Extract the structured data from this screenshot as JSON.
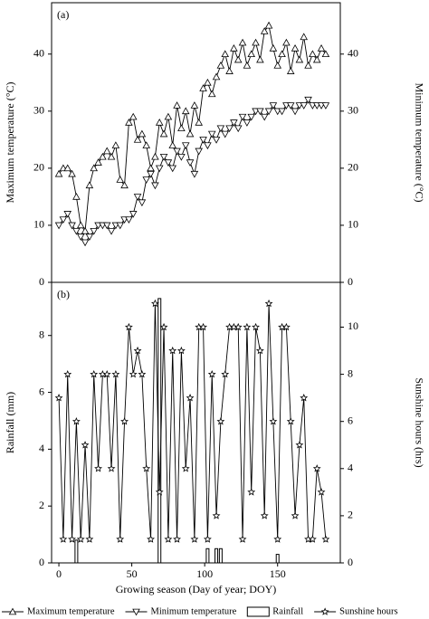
{
  "chart_data": [
    {
      "type": "line",
      "label": "(a)",
      "ylabel": "Maximum  temperature (°C)",
      "y2label": "Minimum  temperature (°C)",
      "xlim": [
        -5,
        193
      ],
      "ylim": [
        0,
        49
      ],
      "yticks": [
        0,
        10,
        20,
        30,
        40
      ],
      "y2lim": [
        0,
        49
      ],
      "y2ticks": [
        0,
        10,
        20,
        30,
        40
      ],
      "x": [
        0,
        3,
        6,
        9,
        12,
        15,
        18,
        21,
        24,
        27,
        30,
        33,
        36,
        39,
        42,
        45,
        48,
        51,
        54,
        57,
        60,
        63,
        66,
        69,
        72,
        75,
        78,
        81,
        84,
        87,
        90,
        93,
        96,
        99,
        102,
        105,
        108,
        111,
        114,
        117,
        120,
        123,
        126,
        129,
        132,
        135,
        138,
        141,
        144,
        147,
        150,
        153,
        156,
        159,
        162,
        165,
        168,
        171,
        174,
        177,
        180,
        183
      ],
      "series": [
        {
          "name": "Maximum temperature",
          "color": "#000000",
          "kind": "line",
          "marker": "triangle-up",
          "axis": "y",
          "values": [
            19,
            20,
            20,
            19,
            15,
            10,
            9,
            17,
            20,
            21,
            22,
            23,
            22,
            24,
            18,
            17,
            28,
            29,
            25,
            26,
            24,
            20,
            22,
            28,
            26,
            29,
            24,
            31,
            27,
            30,
            26,
            31,
            28,
            34,
            35,
            33,
            36,
            38,
            40,
            37,
            41,
            39,
            42,
            38,
            40,
            42,
            39,
            44,
            45,
            41,
            38,
            40,
            42,
            37,
            41,
            39,
            43,
            38,
            40,
            39,
            41,
            40
          ]
        },
        {
          "name": "Minimum temperature",
          "color": "#000000",
          "kind": "line",
          "marker": "triangle-down",
          "axis": "y2",
          "values": [
            10,
            11,
            12,
            10,
            9,
            8,
            7,
            8,
            9,
            10,
            10,
            10,
            9,
            10,
            10,
            11,
            11,
            12,
            15,
            14,
            18,
            19,
            17,
            20,
            22,
            21,
            20,
            23,
            22,
            24,
            21,
            19,
            23,
            25,
            24,
            26,
            25,
            27,
            26,
            27,
            28,
            27,
            29,
            28,
            29,
            30,
            30,
            29,
            30,
            31,
            30,
            30,
            31,
            31,
            30,
            31,
            31,
            32,
            31,
            31,
            31,
            31
          ]
        }
      ]
    },
    {
      "type": "combo",
      "label": "(b)",
      "ylabel": "Rainfall (mm)",
      "y2label": "Sunshine  hours  (hrs)",
      "xlabel": "Growing season (Day of year; DOY)",
      "xlim": [
        -5,
        193
      ],
      "xticks": [
        0,
        50,
        100,
        150
      ],
      "ylim": [
        0,
        9.87
      ],
      "yticks": [
        0,
        2,
        4,
        6,
        8
      ],
      "y2lim": [
        0,
        11.9
      ],
      "y2ticks": [
        0,
        2,
        4,
        6,
        8,
        10
      ],
      "x": [
        0,
        3,
        6,
        9,
        12,
        15,
        18,
        21,
        24,
        27,
        30,
        33,
        36,
        39,
        42,
        45,
        48,
        51,
        54,
        57,
        60,
        63,
        66,
        69,
        72,
        75,
        78,
        81,
        84,
        87,
        90,
        93,
        96,
        99,
        102,
        105,
        108,
        111,
        114,
        117,
        120,
        123,
        126,
        129,
        132,
        135,
        138,
        141,
        144,
        147,
        150,
        153,
        156,
        159,
        162,
        165,
        168,
        171,
        174,
        177,
        180,
        183
      ],
      "series": [
        {
          "name": "Rainfall",
          "color": "#000000",
          "kind": "bar",
          "axis": "y",
          "values": [
            0,
            0,
            0,
            0,
            0.8,
            0,
            0,
            0,
            0,
            0,
            0,
            0,
            0,
            0,
            0,
            0,
            0,
            0,
            0,
            0,
            0,
            0,
            0,
            9.3,
            0,
            0,
            0,
            0,
            0,
            0,
            0,
            0,
            0,
            0,
            0.5,
            0,
            0.5,
            0.5,
            0,
            0,
            0,
            0,
            0,
            0,
            0,
            0,
            0,
            0,
            0,
            0,
            0.3,
            0,
            0,
            0,
            0,
            0,
            0,
            0,
            0,
            0,
            0,
            0
          ]
        },
        {
          "name": "Sunshine hours",
          "color": "#000000",
          "kind": "line",
          "marker": "star",
          "axis": "y2",
          "values": [
            7,
            1,
            8,
            1,
            6,
            1,
            5,
            1,
            8,
            4,
            8,
            8,
            4,
            8,
            1,
            6,
            10,
            8,
            9,
            8,
            4,
            1,
            11,
            3,
            10,
            1,
            9,
            1,
            9,
            4,
            7,
            1,
            10,
            10,
            1,
            8,
            2,
            6,
            8,
            10,
            10,
            10,
            1,
            10,
            3,
            10,
            9,
            2,
            11,
            6,
            1,
            10,
            10,
            6,
            2,
            5,
            7,
            1,
            1,
            4,
            3,
            1
          ]
        }
      ]
    }
  ]
}
